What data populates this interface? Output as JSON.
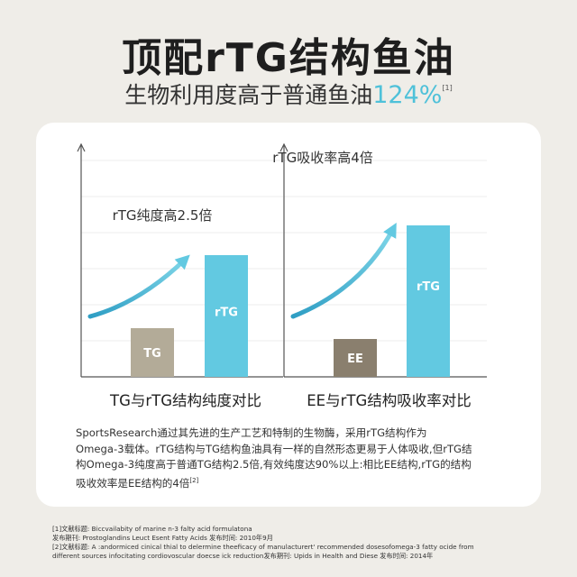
{
  "header": {
    "title": "顶配rTG结构鱼油",
    "subtitle_text": "生物利用度高于普通鱼油",
    "subtitle_value": "124%",
    "subtitle_ref": "[1]"
  },
  "chart_data": [
    {
      "type": "bar",
      "categories": [
        "TG",
        "rTG"
      ],
      "values": [
        1,
        2.5
      ],
      "xlabel": "TG与rTG结构纯度对比",
      "annotation": "rTG纯度高2.5倍",
      "colors": [
        "#b3ab98",
        "#62c9e1"
      ]
    },
    {
      "type": "bar",
      "categories": [
        "EE",
        "rTG"
      ],
      "values": [
        1,
        4
      ],
      "xlabel": "EE与rTG结构吸收率对比",
      "annotation": "rTG吸收率高4倍",
      "colors": [
        "#8a7f6e",
        "#62c9e1"
      ]
    }
  ],
  "description": {
    "line1": "SportsResearch通过其先进的生产工艺和特制的生物酶，采用rTG结构作为",
    "line2": "Omega-3载体。rTG结构与TG结构鱼油具有一样的自然形态更易于人体吸收,但rTG结",
    "line3": "构Omega-3纯度高于普通TG结构2.5倍,有效纯度达90%以上:相比EE结构,rTG的结构",
    "line4": "吸收效率是EE结构的4倍",
    "line4_ref": "[2]"
  },
  "references": {
    "r1": "[1]文献标题: Biccvailabity of marine n-3 falty acid formulatona",
    "r2": "发布期刊: Prostoglandins Leuct Esent Fatty Acids 发布时间: 2010年9月",
    "r3": "[2]文献标题: A :andormiced cinical thial to delermine theeficacy of manulacturert' recommended dosesofomega-3 fatty ocide from",
    "r4": "different sources infocitating cordiovoscular doecse ick reduction发布期刊: Upids in Health and Diese 发布时间: 2014年"
  },
  "colors": {
    "accent": "#4fc1d9",
    "background": "#efede8"
  }
}
